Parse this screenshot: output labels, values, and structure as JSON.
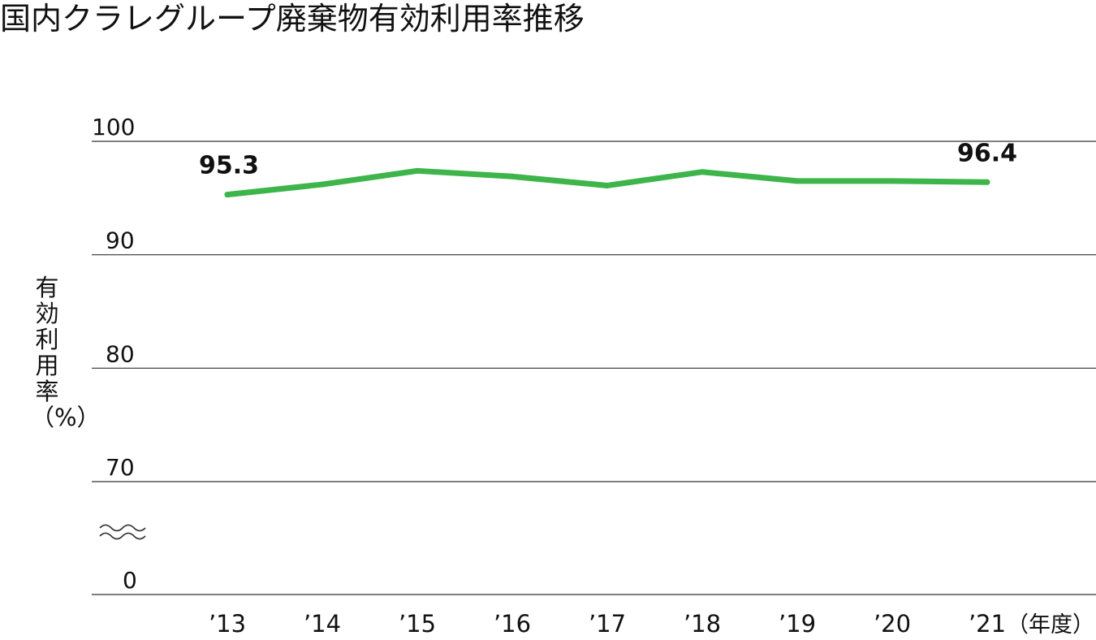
{
  "chart_data": {
    "type": "line",
    "title": "国内クラレグループ廃棄物有効利用率推移",
    "ylabel": "有効利用率（%）",
    "xlabel": "",
    "x_unit_label": "（年度）",
    "categories": [
      "’13",
      "’14",
      "’15",
      "’16",
      "’17",
      "’18",
      "’19",
      "’20",
      "’21"
    ],
    "series": [
      {
        "values": [
          95.3,
          96.2,
          97.4,
          96.9,
          96.1,
          97.3,
          96.5,
          96.5,
          96.4
        ]
      }
    ],
    "y_ticks": [
      "0",
      "70",
      "80",
      "90",
      "100"
    ],
    "y_axis_break": true,
    "ylim": [
      70,
      100
    ],
    "data_labels": [
      {
        "index": 0,
        "text": "95.3"
      },
      {
        "index": 8,
        "text": "96.4"
      }
    ],
    "grid": true,
    "line_color": "#3db54a",
    "grid_color": "#333333"
  }
}
